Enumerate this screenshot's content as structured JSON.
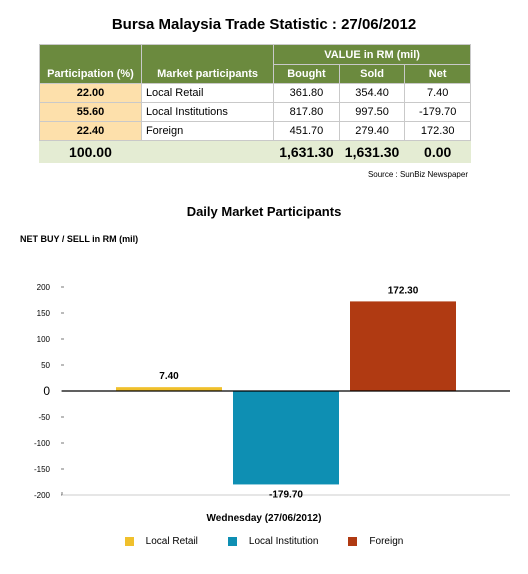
{
  "page_title": "Bursa Malaysia Trade Statistic : 27/06/2012",
  "table": {
    "headers": {
      "participation": "Participation (%)",
      "market_participants": "Market participants",
      "value_group": "VALUE in RM (mil)",
      "bought": "Bought",
      "sold": "Sold",
      "net": "Net"
    },
    "rows": [
      {
        "pct": "22.00",
        "participant": "Local Retail",
        "bought": "361.80",
        "sold": "354.40",
        "net": "7.40"
      },
      {
        "pct": "55.60",
        "participant": "Local Institutions",
        "bought": "817.80",
        "sold": "997.50",
        "net": "-179.70"
      },
      {
        "pct": "22.40",
        "participant": "Foreign",
        "bought": "451.70",
        "sold": "279.40",
        "net": "172.30"
      }
    ],
    "total": {
      "pct": "100.00",
      "bought": "1,631.30",
      "sold": "1,631.30",
      "net": "0.00"
    }
  },
  "source": "Source : SunBiz Newspaper",
  "chart_data": {
    "type": "bar",
    "title": "Daily Market Participants",
    "ylabel": "NET BUY / SELL in RM (mil)",
    "xlabel": "Wednesday (27/06/2012)",
    "ylim": [
      -200,
      200
    ],
    "yticks": [
      200,
      150,
      100,
      50,
      0,
      -50,
      -100,
      -150,
      -200
    ],
    "grid": false,
    "legend_position": "bottom",
    "series": [
      {
        "name": "Local Retail",
        "value": 7.4,
        "label": "7.40",
        "color": "#f0c02c"
      },
      {
        "name": "Local Institution",
        "value": -179.7,
        "label": "-179.70",
        "color": "#0e8fb3"
      },
      {
        "name": "Foreign",
        "value": 172.3,
        "label": "172.30",
        "color": "#b03a12"
      }
    ]
  }
}
